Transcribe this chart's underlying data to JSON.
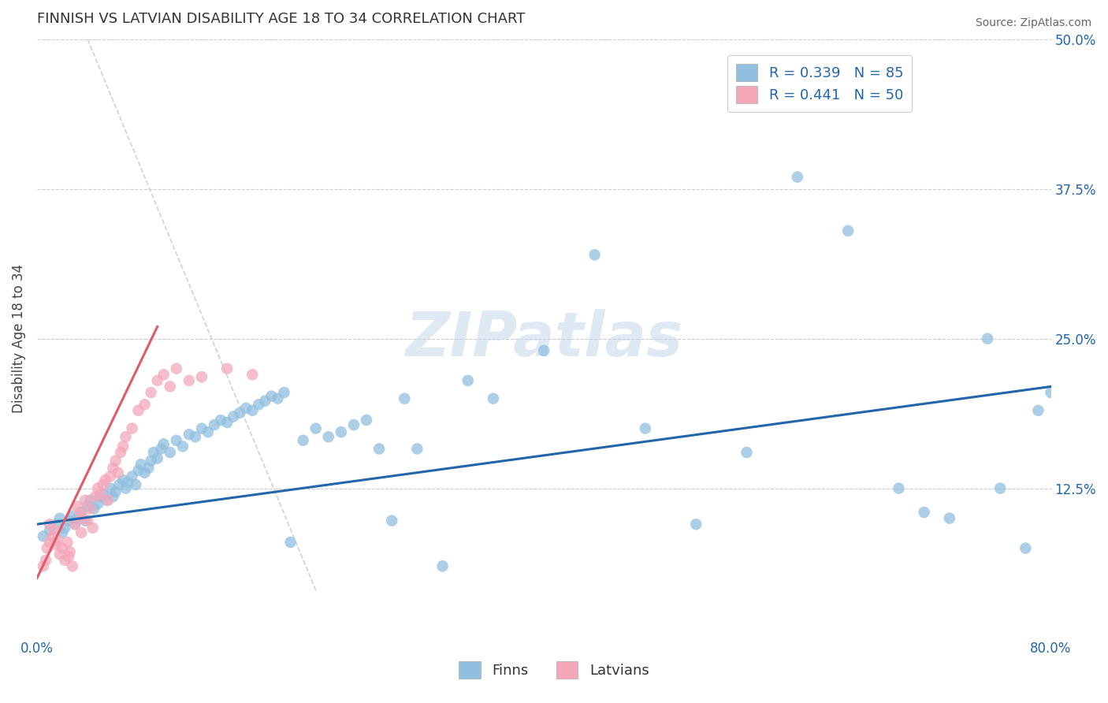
{
  "title": "FINNISH VS LATVIAN DISABILITY AGE 18 TO 34 CORRELATION CHART",
  "source": "Source: ZipAtlas.com",
  "ylabel": "Disability Age 18 to 34",
  "xlim": [
    0.0,
    0.8
  ],
  "ylim": [
    0.0,
    0.5
  ],
  "xticks": [
    0.0,
    0.8
  ],
  "xticklabels": [
    "0.0%",
    "80.0%"
  ],
  "yticks": [
    0.0,
    0.125,
    0.25,
    0.375,
    0.5
  ],
  "yticklabels": [
    "",
    "12.5%",
    "25.0%",
    "37.5%",
    "50.0%"
  ],
  "blue_color": "#90bfdf",
  "pink_color": "#f4a7b9",
  "blue_line_color": "#2166ac",
  "pink_line_color": "#e05a6a",
  "ref_line_color": "#cccccc",
  "blue_R": 0.339,
  "blue_N": 85,
  "pink_R": 0.441,
  "pink_N": 50,
  "legend_label_blue": "Finns",
  "legend_label_pink": "Latvians",
  "watermark": "ZIPatlas",
  "title_color": "#333333",
  "title_fontsize": 13,
  "tick_color": "#2166ac",
  "background_color": "#ffffff",
  "grid_color": "#cccccc",
  "blue_x": [
    0.005,
    0.01,
    0.015,
    0.018,
    0.02,
    0.022,
    0.025,
    0.028,
    0.03,
    0.032,
    0.035,
    0.038,
    0.04,
    0.042,
    0.045,
    0.048,
    0.05,
    0.052,
    0.055,
    0.058,
    0.06,
    0.062,
    0.065,
    0.068,
    0.07,
    0.072,
    0.075,
    0.078,
    0.08,
    0.082,
    0.085,
    0.088,
    0.09,
    0.092,
    0.095,
    0.098,
    0.1,
    0.105,
    0.11,
    0.115,
    0.12,
    0.125,
    0.13,
    0.135,
    0.14,
    0.145,
    0.15,
    0.155,
    0.16,
    0.165,
    0.17,
    0.175,
    0.18,
    0.185,
    0.19,
    0.195,
    0.2,
    0.21,
    0.22,
    0.23,
    0.24,
    0.25,
    0.26,
    0.27,
    0.28,
    0.29,
    0.3,
    0.32,
    0.34,
    0.36,
    0.4,
    0.44,
    0.48,
    0.52,
    0.56,
    0.6,
    0.64,
    0.68,
    0.72,
    0.76,
    0.78,
    0.79,
    0.8,
    0.75,
    0.7
  ],
  "blue_y": [
    0.085,
    0.09,
    0.095,
    0.1,
    0.088,
    0.092,
    0.098,
    0.102,
    0.095,
    0.1,
    0.105,
    0.098,
    0.11,
    0.115,
    0.108,
    0.112,
    0.118,
    0.12,
    0.115,
    0.125,
    0.118,
    0.122,
    0.128,
    0.132,
    0.125,
    0.13,
    0.135,
    0.128,
    0.14,
    0.145,
    0.138,
    0.142,
    0.148,
    0.155,
    0.15,
    0.158,
    0.162,
    0.155,
    0.165,
    0.16,
    0.17,
    0.168,
    0.175,
    0.172,
    0.178,
    0.182,
    0.18,
    0.185,
    0.188,
    0.192,
    0.19,
    0.195,
    0.198,
    0.202,
    0.2,
    0.205,
    0.08,
    0.165,
    0.175,
    0.168,
    0.172,
    0.178,
    0.182,
    0.158,
    0.098,
    0.2,
    0.158,
    0.06,
    0.215,
    0.2,
    0.24,
    0.32,
    0.175,
    0.095,
    0.155,
    0.385,
    0.34,
    0.125,
    0.1,
    0.125,
    0.075,
    0.19,
    0.205,
    0.25,
    0.105
  ],
  "pink_x": [
    0.005,
    0.007,
    0.008,
    0.01,
    0.01,
    0.012,
    0.014,
    0.015,
    0.016,
    0.018,
    0.02,
    0.022,
    0.024,
    0.025,
    0.026,
    0.028,
    0.03,
    0.032,
    0.034,
    0.035,
    0.036,
    0.038,
    0.04,
    0.042,
    0.044,
    0.046,
    0.048,
    0.05,
    0.052,
    0.054,
    0.056,
    0.058,
    0.06,
    0.062,
    0.064,
    0.066,
    0.068,
    0.07,
    0.075,
    0.08,
    0.085,
    0.09,
    0.095,
    0.1,
    0.105,
    0.11,
    0.12,
    0.13,
    0.15,
    0.17
  ],
  "pink_y": [
    0.06,
    0.065,
    0.075,
    0.08,
    0.095,
    0.085,
    0.09,
    0.078,
    0.082,
    0.07,
    0.075,
    0.065,
    0.08,
    0.068,
    0.072,
    0.06,
    0.095,
    0.11,
    0.105,
    0.088,
    0.1,
    0.115,
    0.098,
    0.108,
    0.092,
    0.118,
    0.125,
    0.12,
    0.128,
    0.132,
    0.115,
    0.135,
    0.142,
    0.148,
    0.138,
    0.155,
    0.16,
    0.168,
    0.175,
    0.19,
    0.195,
    0.205,
    0.215,
    0.22,
    0.21,
    0.225,
    0.215,
    0.218,
    0.225,
    0.22
  ],
  "ref_line_x": [
    0.04,
    0.22
  ],
  "ref_line_y": [
    0.5,
    0.04
  ]
}
